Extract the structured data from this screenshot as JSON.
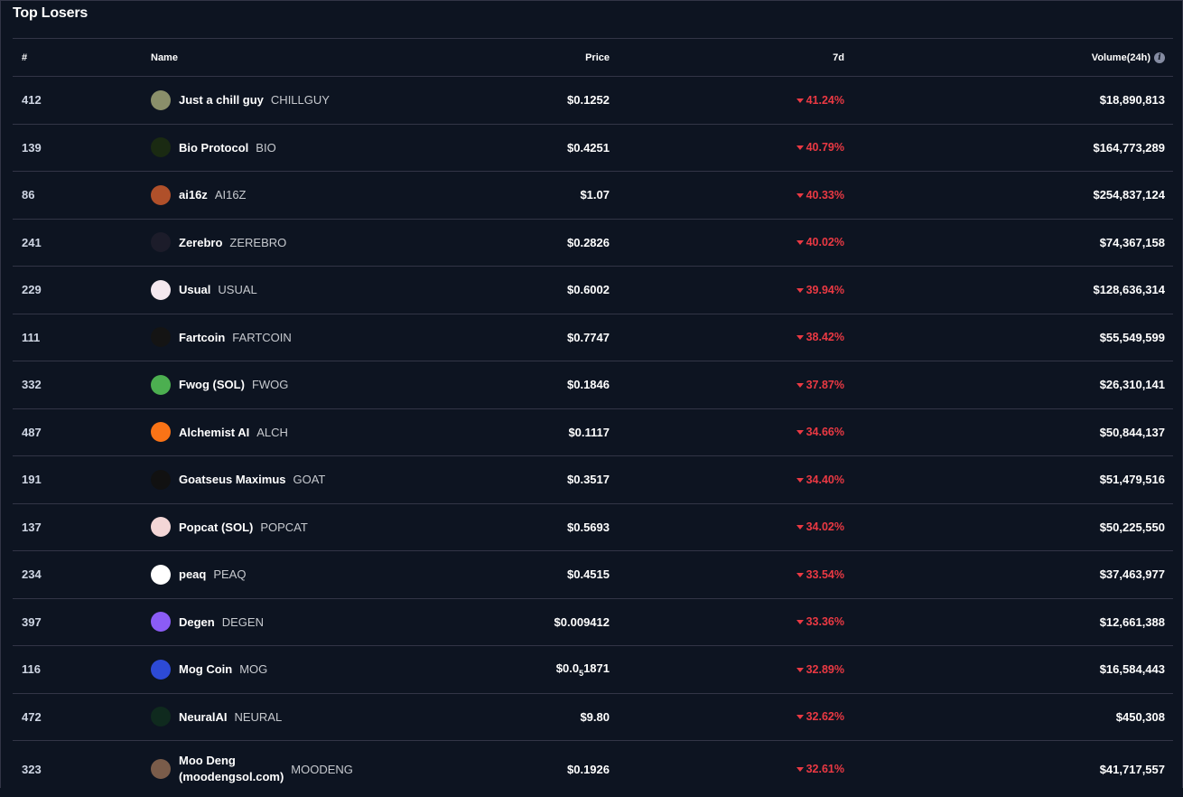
{
  "title": "Top Losers",
  "columns": {
    "rank": "#",
    "name": "Name",
    "price": "Price",
    "change": "7d",
    "volume": "Volume(24h)"
  },
  "colors": {
    "background": "#0d1421",
    "negative": "#ea3943",
    "border": "#323546"
  },
  "rows": [
    {
      "rank": "412",
      "name": "Just a chill guy",
      "symbol": "CHILLGUY",
      "price": "$0.1252",
      "change": "41.24%",
      "volume": "$18,890,813",
      "icon": "chillguy-icon",
      "icon_color": "#8a8f6a"
    },
    {
      "rank": "139",
      "name": "Bio Protocol",
      "symbol": "BIO",
      "price": "$0.4251",
      "change": "40.79%",
      "volume": "$164,773,289",
      "icon": "bio-icon",
      "icon_color": "#1a2a12"
    },
    {
      "rank": "86",
      "name": "ai16z",
      "symbol": "AI16Z",
      "price": "$1.07",
      "change": "40.33%",
      "volume": "$254,837,124",
      "icon": "ai16z-icon",
      "icon_color": "#b0502a"
    },
    {
      "rank": "241",
      "name": "Zerebro",
      "symbol": "ZEREBRO",
      "price": "$0.2826",
      "change": "40.02%",
      "volume": "$74,367,158",
      "icon": "zerebro-icon",
      "icon_color": "#1c1c2a"
    },
    {
      "rank": "229",
      "name": "Usual",
      "symbol": "USUAL",
      "price": "$0.6002",
      "change": "39.94%",
      "volume": "$128,636,314",
      "icon": "usual-icon",
      "icon_color": "#f4e8ef"
    },
    {
      "rank": "111",
      "name": "Fartcoin",
      "symbol": "FARTCOIN",
      "price": "$0.7747",
      "change": "38.42%",
      "volume": "$55,549,599",
      "icon": "fartcoin-icon",
      "icon_color": "#141414"
    },
    {
      "rank": "332",
      "name": "Fwog (SOL)",
      "symbol": "FWOG",
      "price": "$0.1846",
      "change": "37.87%",
      "volume": "$26,310,141",
      "icon": "fwog-icon",
      "icon_color": "#4caf50"
    },
    {
      "rank": "487",
      "name": "Alchemist AI",
      "symbol": "ALCH",
      "price": "$0.1117",
      "change": "34.66%",
      "volume": "$50,844,137",
      "icon": "alchemist-icon",
      "icon_color": "#f97316"
    },
    {
      "rank": "191",
      "name": "Goatseus Maximus",
      "symbol": "GOAT",
      "price": "$0.3517",
      "change": "34.40%",
      "volume": "$51,479,516",
      "icon": "goat-icon",
      "icon_color": "#111111"
    },
    {
      "rank": "137",
      "name": "Popcat (SOL)",
      "symbol": "POPCAT",
      "price": "$0.5693",
      "change": "34.02%",
      "volume": "$50,225,550",
      "icon": "popcat-icon",
      "icon_color": "#f3d6d6"
    },
    {
      "rank": "234",
      "name": "peaq",
      "symbol": "PEAQ",
      "price": "$0.4515",
      "change": "33.54%",
      "volume": "$37,463,977",
      "icon": "peaq-icon",
      "icon_color": "#ffffff"
    },
    {
      "rank": "397",
      "name": "Degen",
      "symbol": "DEGEN",
      "price": "$0.009412",
      "change": "33.36%",
      "volume": "$12,661,388",
      "icon": "degen-icon",
      "icon_color": "#8b5cf6"
    },
    {
      "rank": "116",
      "name": "Mog Coin",
      "symbol": "MOG",
      "price_prefix": "$0.0",
      "price_sub": "5",
      "price_suffix": "1871",
      "change": "32.89%",
      "volume": "$16,584,443",
      "icon": "mog-icon",
      "icon_color": "#2d4ad6"
    },
    {
      "rank": "472",
      "name": "NeuralAI",
      "symbol": "NEURAL",
      "price": "$9.80",
      "change": "32.62%",
      "volume": "$450,308",
      "icon": "neural-icon",
      "icon_color": "#0f2a1e"
    },
    {
      "rank": "323",
      "name_line1": "Moo Deng",
      "name_line2": "(moodengsol.com)",
      "symbol": "MOODENG",
      "price": "$0.1926",
      "change": "32.61%",
      "volume": "$41,717,557",
      "icon": "moodeng-icon",
      "icon_color": "#7a5c4a"
    }
  ]
}
